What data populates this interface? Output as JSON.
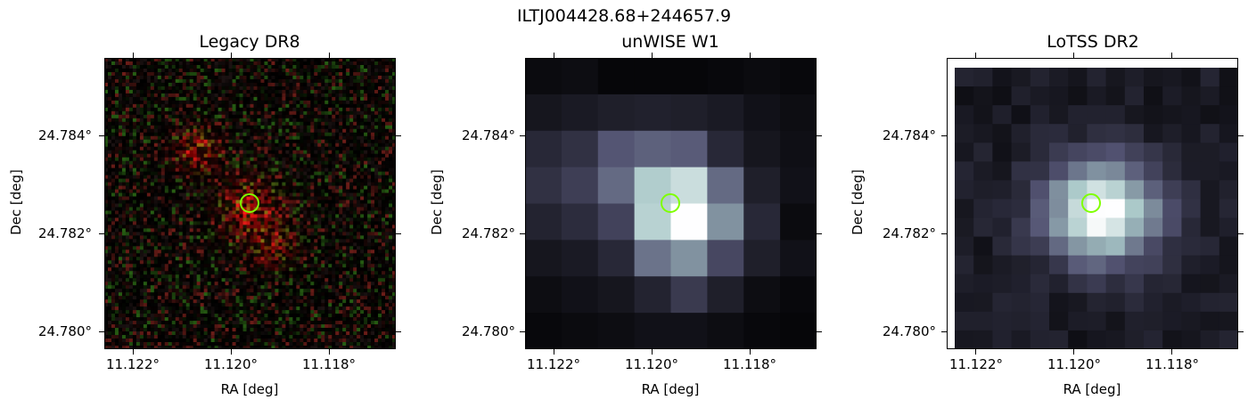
{
  "figure": {
    "suptitle": "ILTJ004428.68+244657.9"
  },
  "panels": [
    {
      "title": "Legacy DR8",
      "xlabel": "RA [deg]",
      "ylabel": "Dec [deg]",
      "xticks": [
        "11.122°",
        "11.120°",
        "11.118°"
      ],
      "yticks": [
        "24.784°",
        "24.782°",
        "24.780°"
      ],
      "marker_color": "#7fff00",
      "image_kind": "rgb-noise"
    },
    {
      "title": "unWISE W1",
      "xlabel": "RA [deg]",
      "ylabel": "Dec [deg]",
      "xticks": [
        "11.122°",
        "11.120°",
        "11.118°"
      ],
      "yticks": [
        "24.784°",
        "24.782°",
        "24.780°"
      ],
      "marker_color": "#7fff00",
      "image_kind": "bone-coarse"
    },
    {
      "title": "LoTSS DR2",
      "xlabel": "RA [deg]",
      "ylabel": "Dec [deg]",
      "xticks": [
        "11.122°",
        "11.120°",
        "11.118°"
      ],
      "yticks": [
        "24.784°",
        "24.782°",
        "24.780°"
      ],
      "marker_color": "#7fff00",
      "image_kind": "bone-fine"
    }
  ]
}
